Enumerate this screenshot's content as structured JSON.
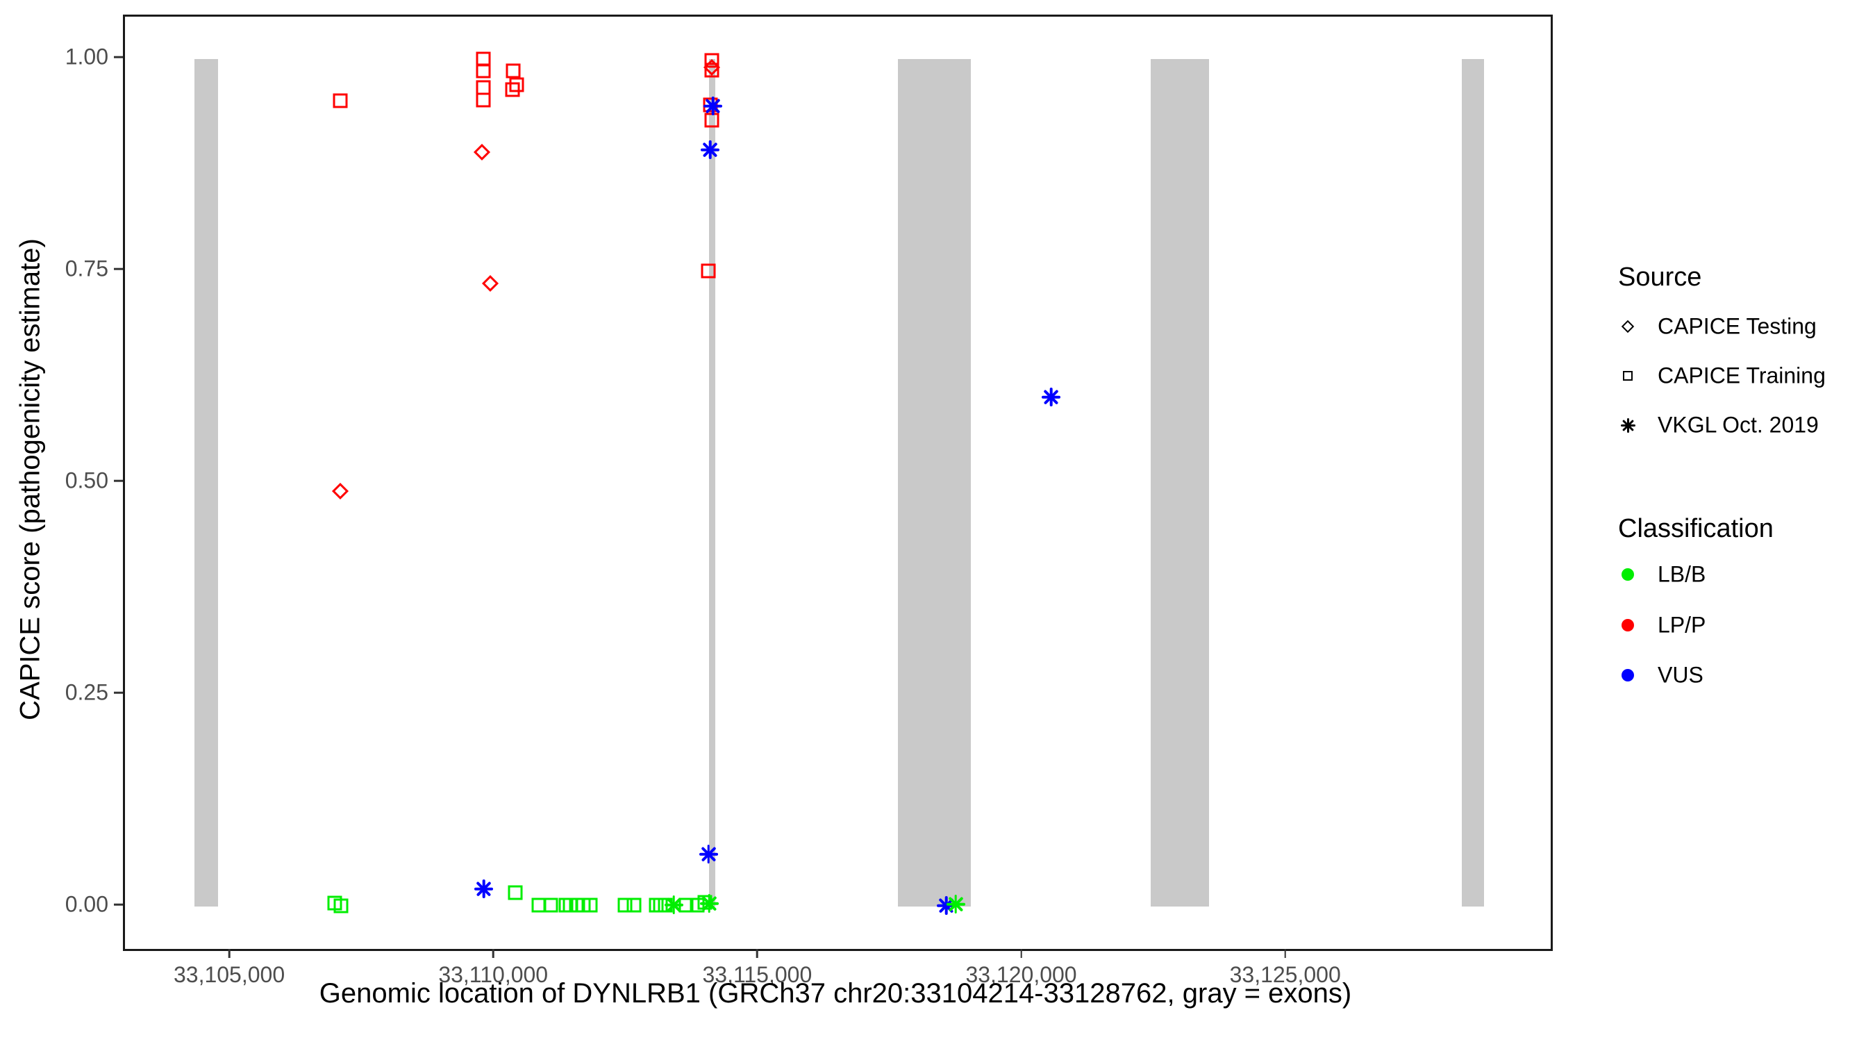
{
  "axes": {
    "x": {
      "title": "Genomic location of DYNLRB1 (GRCh37 chr20:33104214-33128762, gray = exons)",
      "ticks": [
        {
          "label": "33,105,000",
          "value": 33105000
        },
        {
          "label": "33,110,000",
          "value": 33110000
        },
        {
          "label": "33,115,000",
          "value": 33115000
        },
        {
          "label": "33,120,000",
          "value": 33120000
        },
        {
          "label": "33,125,000",
          "value": 33125000
        }
      ]
    },
    "y": {
      "title": "CAPICE score (pathogenicity estimate)",
      "ticks": [
        {
          "label": "1.00",
          "value": 1.0
        },
        {
          "label": "0.75",
          "value": 0.75
        },
        {
          "label": "0.50",
          "value": 0.5
        },
        {
          "label": "0.25",
          "value": 0.25
        },
        {
          "label": "0.00",
          "value": 0.0
        }
      ]
    }
  },
  "legend": {
    "source": {
      "title": "Source",
      "items": [
        {
          "label": "CAPICE Testing",
          "shape": "diamond"
        },
        {
          "label": "CAPICE Training",
          "shape": "square"
        },
        {
          "label": "VKGL Oct. 2019",
          "shape": "asterisk"
        }
      ]
    },
    "classification": {
      "title": "Classification",
      "items": [
        {
          "label": "LB/B",
          "color_key": "LB/B"
        },
        {
          "label": "LP/P",
          "color_key": "LP/P"
        },
        {
          "label": "VUS",
          "color_key": "VUS"
        }
      ]
    }
  },
  "chart_data": {
    "type": "scatter",
    "xlabel": "Genomic location of DYNLRB1 (GRCh37 chr20:33104214-33128762, gray = exons)",
    "ylabel": "CAPICE score (pathogenicity estimate)",
    "x_domain": [
      33102987,
      33129989
    ],
    "y_domain": [
      -0.05,
      1.05
    ],
    "exon_color": "#c9c9c9",
    "exons_bp": [
      [
        33104303,
        33104750
      ],
      [
        33114053,
        33114171
      ],
      [
        33117632,
        33119013
      ],
      [
        33122408,
        33123513
      ],
      [
        33128303,
        33128724
      ]
    ],
    "classification_colors": {
      "LB/B": "#00ee00",
      "LP/P": "#ff0000",
      "VUS": "#0000ff"
    },
    "series": [
      {
        "name": "CAPICE Testing",
        "shape": "diamond",
        "points": [
          {
            "x": 33107070,
            "y": 0.49,
            "class": "LP/P"
          },
          {
            "x": 33109750,
            "y": 0.89,
            "class": "LP/P"
          },
          {
            "x": 33109900,
            "y": 0.735,
            "class": "LP/P"
          },
          {
            "x": 33114100,
            "y": 0.99,
            "class": "LP/P"
          }
        ]
      },
      {
        "name": "CAPICE Training",
        "shape": "square",
        "points": [
          {
            "x": 33107070,
            "y": 0.951,
            "class": "LP/P"
          },
          {
            "x": 33109780,
            "y": 1.0,
            "class": "LP/P"
          },
          {
            "x": 33109780,
            "y": 0.986,
            "class": "LP/P"
          },
          {
            "x": 33109780,
            "y": 0.966,
            "class": "LP/P"
          },
          {
            "x": 33109770,
            "y": 0.952,
            "class": "LP/P"
          },
          {
            "x": 33110340,
            "y": 0.986,
            "class": "LP/P"
          },
          {
            "x": 33110400,
            "y": 0.97,
            "class": "LP/P"
          },
          {
            "x": 33110330,
            "y": 0.964,
            "class": "LP/P"
          },
          {
            "x": 33114100,
            "y": 0.998,
            "class": "LP/P"
          },
          {
            "x": 33114100,
            "y": 0.987,
            "class": "LP/P"
          },
          {
            "x": 33114080,
            "y": 0.946,
            "class": "LP/P"
          },
          {
            "x": 33114100,
            "y": 0.928,
            "class": "LP/P"
          },
          {
            "x": 33114030,
            "y": 0.75,
            "class": "LP/P"
          },
          {
            "x": 33106960,
            "y": 0.004,
            "class": "LB/B"
          },
          {
            "x": 33107080,
            "y": 0.001,
            "class": "LB/B"
          },
          {
            "x": 33110380,
            "y": 0.016,
            "class": "LB/B"
          },
          {
            "x": 33110830,
            "y": 0.002,
            "class": "LB/B"
          },
          {
            "x": 33111050,
            "y": 0.002,
            "class": "LB/B"
          },
          {
            "x": 33111340,
            "y": 0.002,
            "class": "LB/B"
          },
          {
            "x": 33111420,
            "y": 0.002,
            "class": "LB/B"
          },
          {
            "x": 33111540,
            "y": 0.002,
            "class": "LB/B"
          },
          {
            "x": 33111670,
            "y": 0.002,
            "class": "LB/B"
          },
          {
            "x": 33111800,
            "y": 0.002,
            "class": "LB/B"
          },
          {
            "x": 33112460,
            "y": 0.002,
            "class": "LB/B"
          },
          {
            "x": 33112630,
            "y": 0.002,
            "class": "LB/B"
          },
          {
            "x": 33113050,
            "y": 0.002,
            "class": "LB/B"
          },
          {
            "x": 33113130,
            "y": 0.002,
            "class": "LB/B"
          },
          {
            "x": 33113220,
            "y": 0.002,
            "class": "LB/B"
          },
          {
            "x": 33113620,
            "y": 0.002,
            "class": "LB/B"
          },
          {
            "x": 33113820,
            "y": 0.002,
            "class": "LB/B"
          },
          {
            "x": 33113970,
            "y": 0.005,
            "class": "LB/B"
          }
        ]
      },
      {
        "name": "VKGL Oct. 2019",
        "shape": "asterisk",
        "points": [
          {
            "x": 33109780,
            "y": 0.021,
            "class": "VUS"
          },
          {
            "x": 33114120,
            "y": 0.945,
            "class": "VUS"
          },
          {
            "x": 33114070,
            "y": 0.893,
            "class": "VUS"
          },
          {
            "x": 33114040,
            "y": 0.062,
            "class": "VUS"
          },
          {
            "x": 33118540,
            "y": 0.001,
            "class": "VUS"
          },
          {
            "x": 33120530,
            "y": 0.601,
            "class": "VUS"
          },
          {
            "x": 33113380,
            "y": 0.002,
            "class": "LB/B"
          },
          {
            "x": 33114050,
            "y": 0.004,
            "class": "LB/B"
          },
          {
            "x": 33118720,
            "y": 0.003,
            "class": "LB/B"
          }
        ]
      }
    ]
  }
}
